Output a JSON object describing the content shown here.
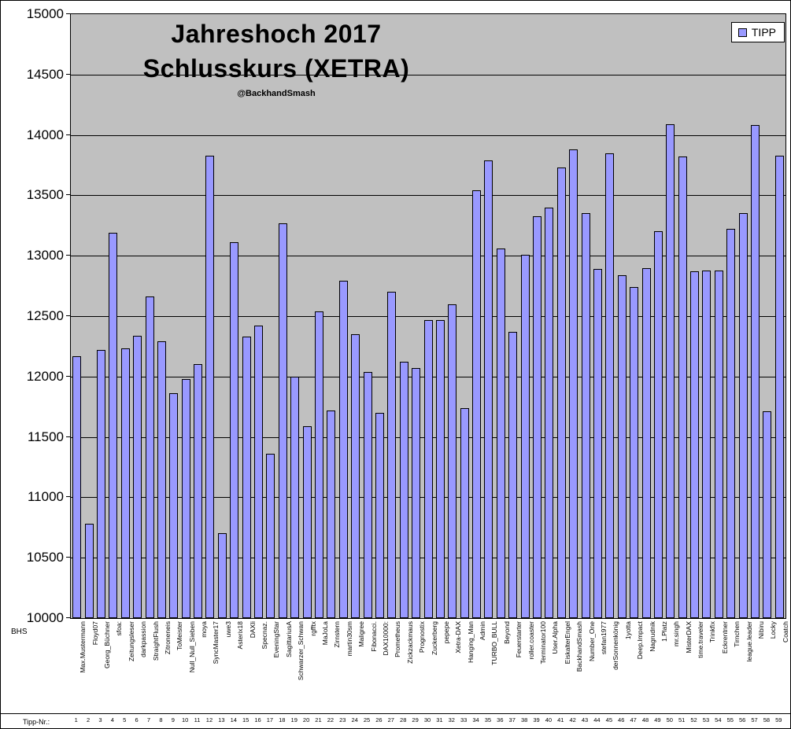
{
  "title_line1": "Jahreshoch 2017",
  "title_line2": "Schlusskurs (XETRA)",
  "subtitle": "@BackhandSmash",
  "legend": {
    "label": "TIPP",
    "marker_color": "#9999ff"
  },
  "axis_note": "BHS",
  "bottom_row_label": "Tipp-Nr.:",
  "chart_data": {
    "type": "bar",
    "title": "Jahreshoch 2017 Schlusskurs (XETRA)",
    "xlabel": "",
    "ylabel": "",
    "ylim": [
      10000,
      15000
    ],
    "ytick_step": 500,
    "grid": true,
    "legend_position": "top-right",
    "plot_bg": "#c0c0c0",
    "bar_color": "#9999ff",
    "series_name": "TIPP",
    "categories": [
      "Max.Mustermann",
      "Floyd07",
      "Georg_Büchner",
      "sfoa:",
      "Zeitungsleser",
      "darkpassion",
      "StraightFlush",
      "Zitroneneis",
      "ToMeister",
      "Null_Null_Sieben",
      "moya",
      "SyncMaster17",
      "uwe3",
      "Asterix18",
      "DAXli",
      "Specnaz.",
      "EveningStar",
      "SagittariusA",
      "Schwarzer_Schwan",
      "rgfftx",
      "MaJoLa",
      "Zirnstern",
      "martin30sm",
      "Maligree",
      "Fibonacci.",
      "DAX10000:",
      "Prometheus",
      "Zickzackmaus",
      "Prognostix",
      "Zuckerberg",
      "pepepe",
      "Xetra-DAX",
      "Hanging_Man",
      "Admin",
      "TURBO_BULL",
      "Beyond",
      "Feuerstarter",
      "roller.coaster",
      "Terminator100",
      "User.Alpha",
      "EiskalterEngel",
      "BackhandSmash",
      "Number_One",
      "stefan1977",
      "derSonnenkönig",
      "1yotta",
      "Deep.Impact",
      "Nagrudnik",
      "1.Platz",
      "mr.singh",
      "MisterDAX",
      "time.traveler",
      "Trinkfix",
      "Eckrentner",
      "Tirnchen",
      "league.leader",
      "Nibiru",
      "Locky",
      "Coatch"
    ],
    "tipp_numbers": [
      1,
      2,
      3,
      4,
      5,
      6,
      7,
      8,
      9,
      10,
      11,
      12,
      13,
      14,
      15,
      16,
      17,
      18,
      19,
      20,
      21,
      22,
      23,
      24,
      25,
      26,
      27,
      28,
      29,
      30,
      31,
      32,
      33,
      34,
      35,
      36,
      37,
      38,
      39,
      40,
      41,
      42,
      43,
      44,
      45,
      46,
      47,
      48,
      49,
      50,
      51,
      52,
      53,
      54,
      55,
      56,
      57,
      58,
      59
    ],
    "values": [
      12170,
      10780,
      12220,
      13190,
      12230,
      12340,
      12660,
      12290,
      11860,
      11980,
      12100,
      13830,
      10700,
      13110,
      12330,
      12420,
      11360,
      13270,
      12000,
      11590,
      12540,
      11720,
      12790,
      12350,
      12040,
      11700,
      12700,
      12120,
      12070,
      12470,
      12470,
      12600,
      11740,
      13540,
      13790,
      13060,
      12370,
      13010,
      13330,
      13400,
      13730,
      13880,
      13350,
      12890,
      13850,
      12840,
      12740,
      12900,
      13200,
      14090,
      13820,
      12870,
      12880,
      12880,
      13220,
      13350,
      14080,
      11710,
      13830
    ]
  }
}
